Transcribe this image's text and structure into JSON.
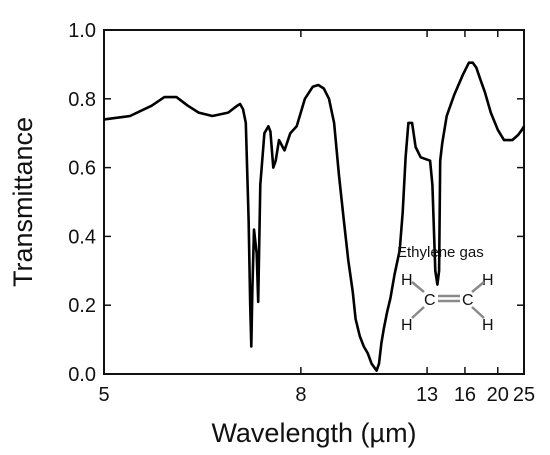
{
  "chart_data": {
    "type": "line",
    "xlabel": "Wavelength (µm)",
    "ylabel": "Transmittance",
    "xscale": "reciprocal",
    "xlim": [
      5,
      25
    ],
    "ylim": [
      0.0,
      1.0
    ],
    "x_ticks": [
      5,
      8,
      13,
      16,
      20,
      25
    ],
    "y_ticks": [
      0.0,
      0.2,
      0.4,
      0.6,
      0.8,
      1.0
    ],
    "x_tick_labels": [
      "5",
      "8",
      "13",
      "16",
      "20",
      "25"
    ],
    "y_tick_labels": [
      "0.0",
      "0.2",
      "0.4",
      "0.6",
      "0.8",
      "1.0"
    ],
    "grid": false,
    "line_color": "#000000",
    "series": [
      {
        "x": [
          5.0,
          5.26,
          5.5,
          5.65,
          5.8,
          5.95,
          6.1,
          6.3,
          6.55,
          6.7,
          6.75,
          6.8,
          6.85,
          6.9,
          6.93,
          6.95,
          6.97,
          7.0,
          7.05,
          7.08,
          7.12,
          7.2,
          7.28,
          7.32,
          7.38,
          7.43,
          7.5,
          7.62,
          7.75,
          7.9,
          8.1,
          8.3,
          8.45,
          8.6,
          8.75,
          8.9,
          9.05,
          9.2,
          9.35,
          9.5,
          9.6,
          9.75,
          9.9,
          10.05,
          10.2,
          10.4,
          10.5,
          10.55,
          10.6,
          10.7,
          10.85,
          11.0,
          11.2,
          11.45,
          11.6,
          11.75,
          11.9,
          12.1,
          12.3,
          12.6,
          13.2,
          13.35,
          13.55,
          13.7,
          13.82,
          13.9,
          14.05,
          14.4,
          15.0,
          15.8,
          16.4,
          16.8,
          17.2,
          17.6,
          18.2,
          19.0,
          20.0,
          21.0,
          22.5,
          23.7,
          24.5,
          25.0
        ],
        "y": [
          0.74,
          0.75,
          0.78,
          0.805,
          0.805,
          0.78,
          0.76,
          0.75,
          0.76,
          0.78,
          0.785,
          0.77,
          0.73,
          0.45,
          0.2,
          0.08,
          0.25,
          0.42,
          0.35,
          0.21,
          0.55,
          0.7,
          0.72,
          0.705,
          0.6,
          0.62,
          0.68,
          0.65,
          0.7,
          0.72,
          0.8,
          0.835,
          0.84,
          0.83,
          0.8,
          0.73,
          0.58,
          0.45,
          0.33,
          0.24,
          0.16,
          0.11,
          0.08,
          0.06,
          0.03,
          0.01,
          0.03,
          0.06,
          0.09,
          0.13,
          0.18,
          0.22,
          0.29,
          0.36,
          0.47,
          0.63,
          0.73,
          0.73,
          0.66,
          0.63,
          0.62,
          0.55,
          0.3,
          0.26,
          0.3,
          0.62,
          0.67,
          0.75,
          0.81,
          0.87,
          0.905,
          0.905,
          0.89,
          0.86,
          0.82,
          0.76,
          0.71,
          0.68,
          0.68,
          0.695,
          0.71,
          0.72
        ]
      }
    ],
    "annotations": {
      "label": "Ethylene gas",
      "atoms": [
        "H",
        "H",
        "C",
        "C",
        "H",
        "H"
      ]
    }
  }
}
